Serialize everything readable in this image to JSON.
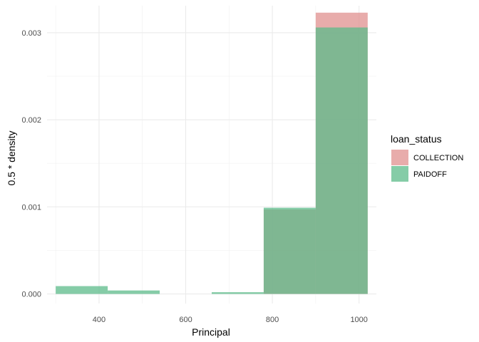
{
  "chart_data": {
    "type": "histogram",
    "xlabel": "Principal",
    "ylabel": "0.5 * density",
    "xlim": [
      280,
      1040
    ],
    "ylim": [
      -0.00011,
      0.00331
    ],
    "x_ticks": [
      400,
      600,
      800,
      1000
    ],
    "y_ticks": [
      0,
      0.001,
      0.002,
      0.003
    ],
    "y_tick_labels": [
      "0.000",
      "0.001",
      "0.002",
      "0.003"
    ],
    "grid": true,
    "legend": {
      "title": "loan_status",
      "position": "right"
    },
    "bin_edges": [
      300,
      420,
      540,
      660,
      780,
      900,
      1020
    ],
    "series": [
      {
        "name": "COLLECTION",
        "color": "#e0908f",
        "values": [
          0,
          0,
          0,
          0,
          0.00097,
          0.00323
        ]
      },
      {
        "name": "PAIDOFF",
        "color": "#5cbb8a",
        "values": [
          9e-05,
          4e-05,
          0,
          2e-05,
          0.00099,
          0.00306
        ]
      }
    ]
  }
}
